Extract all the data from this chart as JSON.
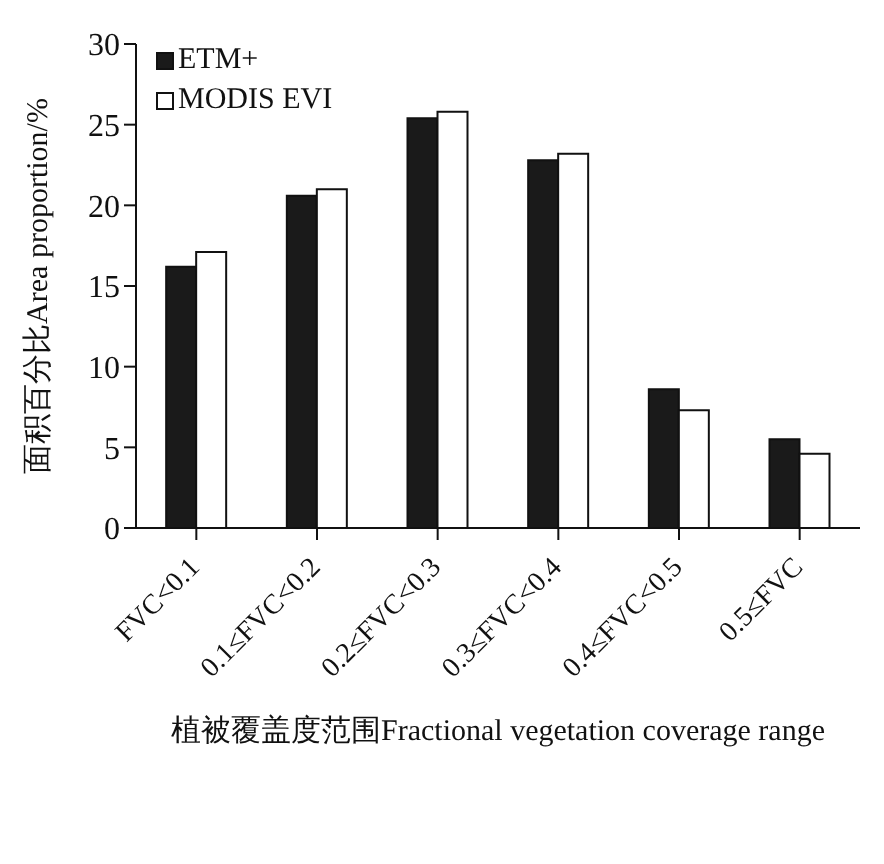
{
  "chart_data": {
    "type": "bar",
    "xlabel": "植被覆盖度范围Fractional vegetation coverage range",
    "ylabel": "面积百分比Area proportion/%",
    "categories": [
      "FVC<0.1",
      "0.1≤FVC<0.2",
      "0.2≤FVC<0.3",
      "0.3≤FVC<0.4",
      "0.4≤FVC<0.5",
      "0.5≤FVC"
    ],
    "series": [
      {
        "name": "ETM+",
        "color": "#1a1a1a",
        "values": [
          16.2,
          20.6,
          25.4,
          22.8,
          8.6,
          5.5
        ]
      },
      {
        "name": "MODIS EVI",
        "color": "#ffffff",
        "values": [
          17.1,
          21.0,
          25.8,
          23.2,
          7.3,
          4.6
        ]
      }
    ],
    "ylim": [
      0,
      30
    ],
    "yticks": [
      0,
      5,
      10,
      15,
      20,
      25,
      30
    ],
    "grid": false,
    "legend": "top left"
  }
}
